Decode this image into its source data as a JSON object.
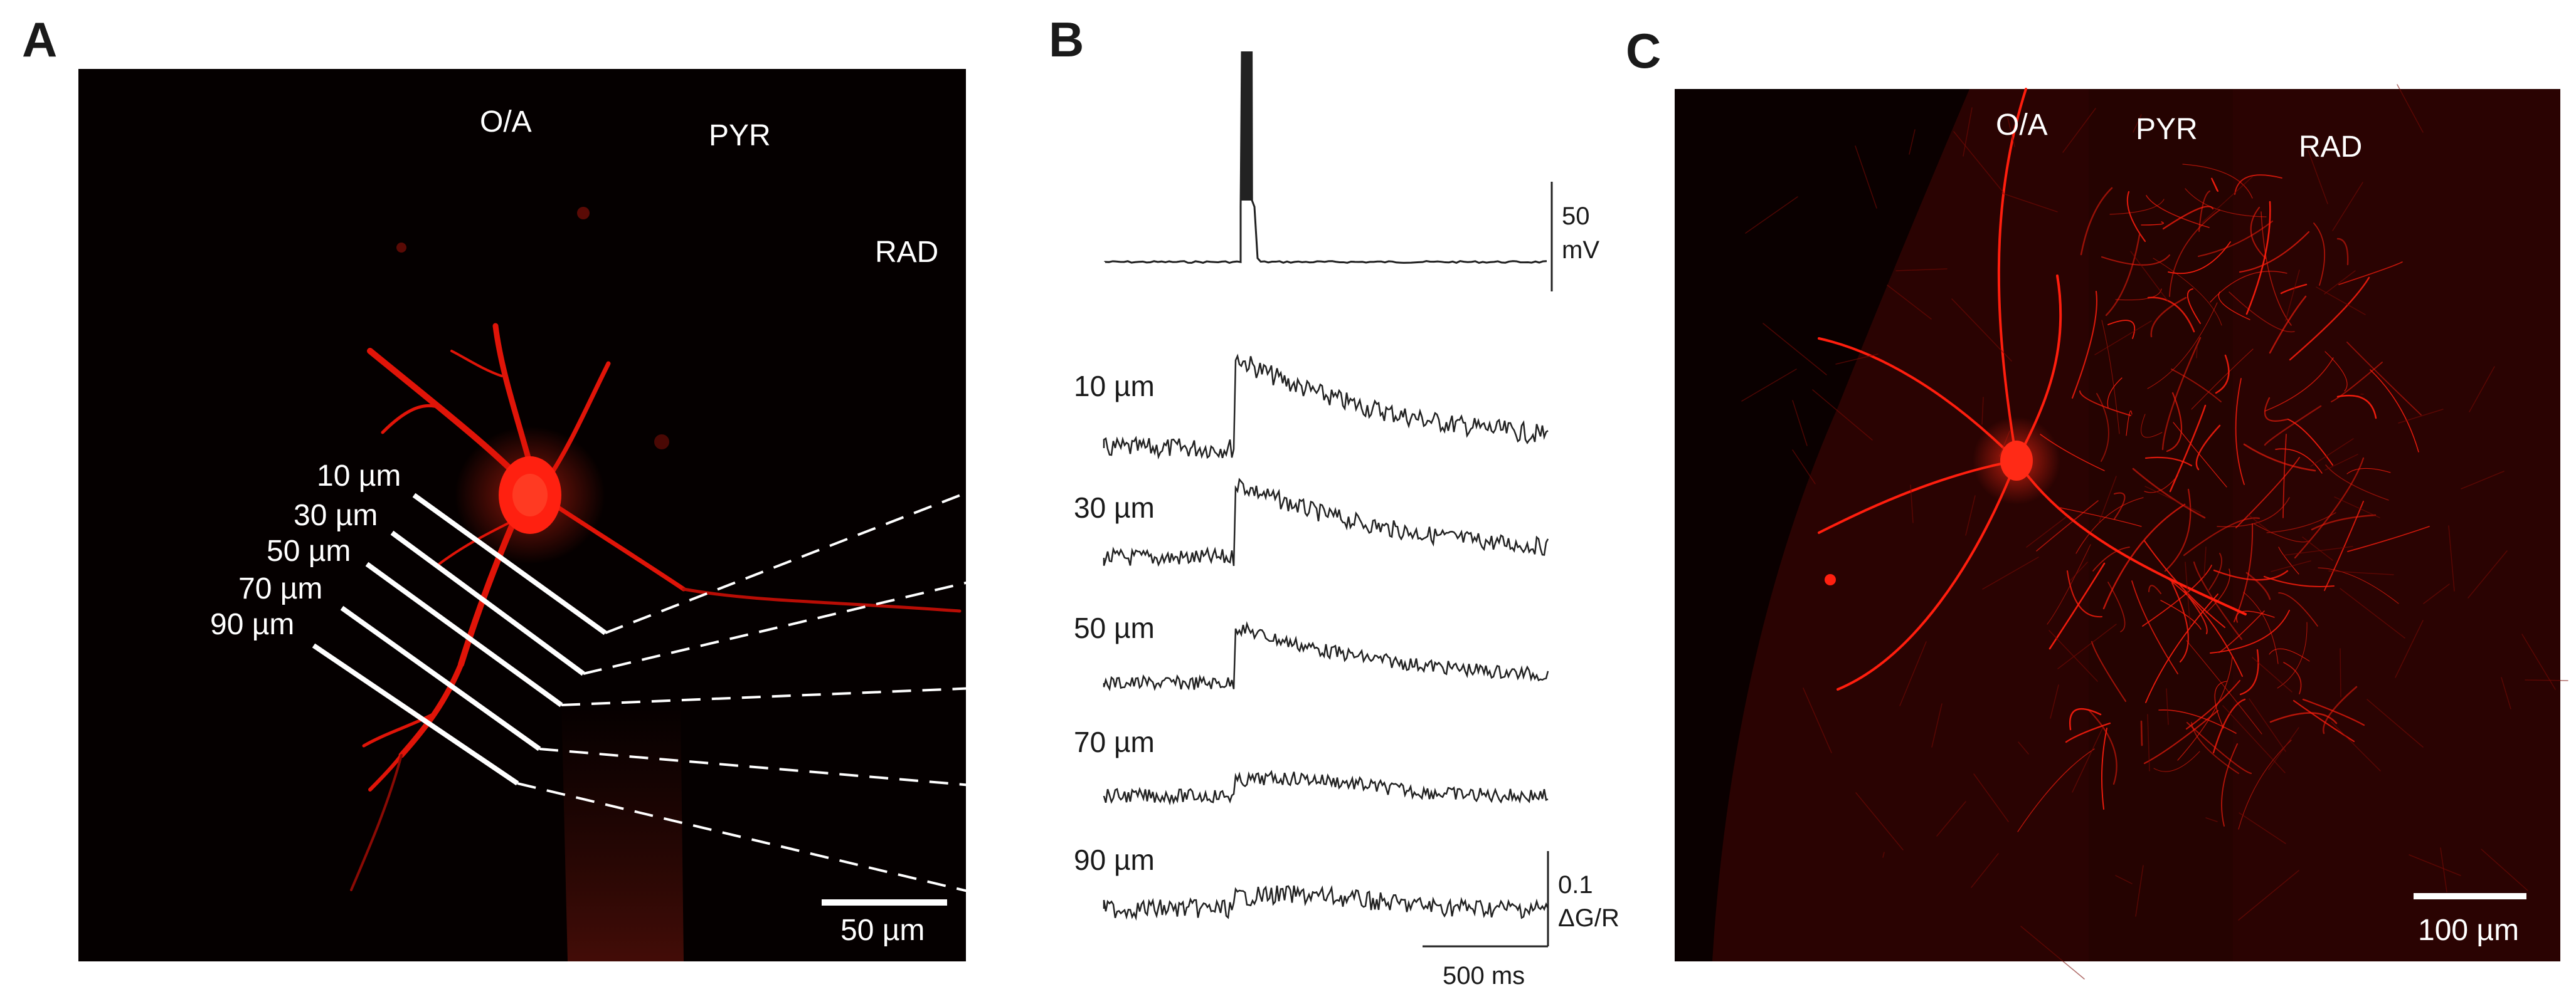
{
  "panels": {
    "a": {
      "letter": "A",
      "regions": [
        "O/A",
        "PYR",
        "RAD"
      ],
      "distance_labels": [
        "10 µm",
        "30 µm",
        "50 µm",
        "70 µm",
        "90 µm"
      ],
      "scale_bar": "50 µm"
    },
    "b": {
      "letter": "B",
      "voltage_scale": {
        "value": "50",
        "unit": "mV"
      },
      "trace_labels": [
        "10 µm",
        "30 µm",
        "50 µm",
        "70 µm",
        "90 µm"
      ],
      "fluor_scale": {
        "value": "0.1",
        "unit": "ΔG/R"
      },
      "time_scale": "500 ms"
    },
    "c": {
      "letter": "C",
      "regions": [
        "O/A",
        "PYR",
        "RAD"
      ],
      "scale_bar": "100 µm"
    }
  },
  "colors": {
    "neuron": "#ff1a0d",
    "background": "#050000",
    "trace": "#222222"
  }
}
